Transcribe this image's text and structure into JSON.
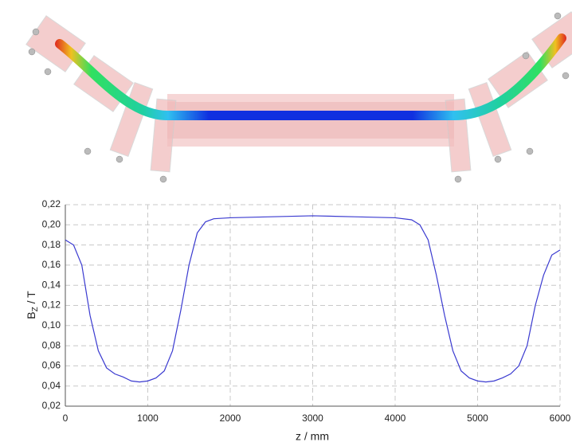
{
  "chart_data": {
    "type": "line",
    "ylabel": {
      "main": "B",
      "sub": "Z",
      "unit": " / T"
    },
    "xlabel": "z / mm",
    "x": [
      0,
      100,
      200,
      300,
      400,
      500,
      600,
      700,
      800,
      900,
      1000,
      1100,
      1200,
      1300,
      1400,
      1500,
      1600,
      1700,
      1800,
      2000,
      2500,
      3000,
      3500,
      4000,
      4200,
      4300,
      4400,
      4500,
      4600,
      4700,
      4800,
      4900,
      5000,
      5100,
      5200,
      5300,
      5400,
      5500,
      5600,
      5700,
      5800,
      5900,
      6000
    ],
    "series": [
      {
        "name": "Bz",
        "color": "#3a3ad0",
        "values": [
          0.185,
          0.18,
          0.16,
          0.11,
          0.075,
          0.058,
          0.052,
          0.049,
          0.045,
          0.044,
          0.045,
          0.048,
          0.055,
          0.075,
          0.115,
          0.16,
          0.192,
          0.203,
          0.206,
          0.207,
          0.208,
          0.209,
          0.208,
          0.207,
          0.205,
          0.2,
          0.185,
          0.15,
          0.11,
          0.075,
          0.055,
          0.048,
          0.045,
          0.044,
          0.045,
          0.048,
          0.052,
          0.06,
          0.08,
          0.12,
          0.15,
          0.17,
          0.175
        ]
      }
    ],
    "xlim": [
      0,
      6000
    ],
    "xticks": [
      0,
      1000,
      2000,
      3000,
      4000,
      5000,
      6000
    ],
    "ylim": [
      0.02,
      0.22
    ],
    "yticks": [
      {
        "value": 0.02,
        "label": "0,02"
      },
      {
        "value": 0.04,
        "label": "0,04"
      },
      {
        "value": 0.06,
        "label": "0,06"
      },
      {
        "value": 0.08,
        "label": "0,08"
      },
      {
        "value": 0.1,
        "label": "0,10"
      },
      {
        "value": 0.12,
        "label": "0,12"
      },
      {
        "value": 0.14,
        "label": "0,14"
      },
      {
        "value": 0.16,
        "label": "0,16"
      },
      {
        "value": 0.18,
        "label": "0,18"
      },
      {
        "value": 0.2,
        "label": "0,20"
      },
      {
        "value": 0.22,
        "label": "0,22"
      }
    ],
    "grid": true
  }
}
